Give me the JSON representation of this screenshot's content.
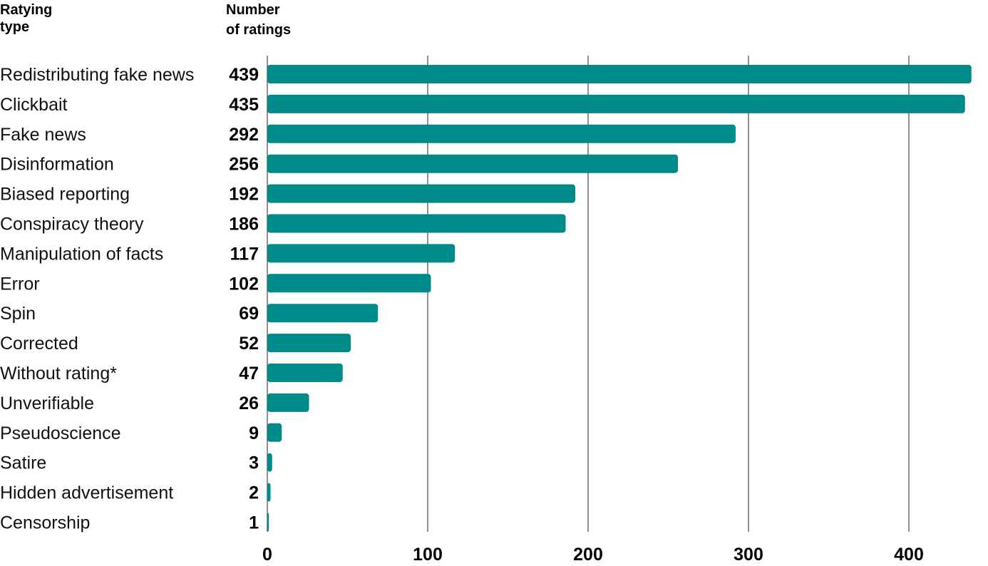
{
  "chart_data": {
    "type": "bar",
    "orientation": "horizontal",
    "category_header": [
      "Ratying",
      "type"
    ],
    "value_header": [
      "Number",
      "of ratings"
    ],
    "categories": [
      "Redistributing fake news",
      "Clickbait",
      "Fake news",
      "Disinformation",
      "Biased reporting",
      "Conspiracy theory",
      "Manipulation of facts",
      "Error",
      "Spin",
      "Corrected",
      "Without rating*",
      "Unverifiable",
      "Pseudoscience",
      "Satire",
      "Hidden advertisement",
      "Censorship"
    ],
    "values": [
      439,
      435,
      292,
      256,
      192,
      186,
      117,
      102,
      69,
      52,
      47,
      26,
      9,
      3,
      2,
      1
    ],
    "xlim": [
      0,
      440
    ],
    "xticks": [
      0,
      100,
      200,
      300,
      400
    ],
    "grid": true,
    "bar_color": "#008b8b"
  }
}
